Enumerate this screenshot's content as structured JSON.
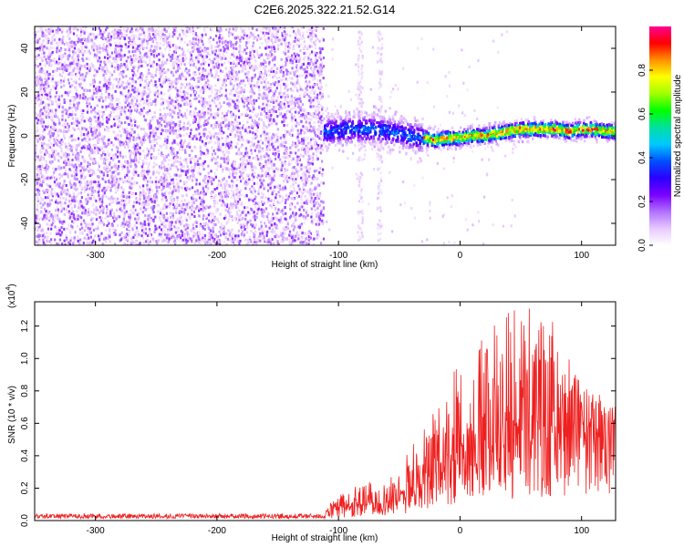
{
  "figure": {
    "title": "C2E6.2025.322.21.52.G14"
  },
  "chart_data": [
    {
      "type": "heatmap",
      "xlabel": "Height of straight line (km)",
      "ylabel": "Frequency (Hz)",
      "xlim": [
        -350,
        128
      ],
      "ylim": [
        -50,
        50
      ],
      "xticks": [
        -300,
        -200,
        -100,
        0,
        100
      ],
      "yticks": [
        -40,
        -20,
        0,
        20,
        40
      ],
      "colorbar": {
        "label": "Normalized spectral amplitude",
        "range": [
          0.0,
          1.0
        ],
        "ticks": [
          0.0,
          0.2,
          0.4,
          0.6,
          0.8
        ],
        "colormap": [
          "#ffffff",
          "#e8c8ff",
          "#b070ff",
          "#7a00ff",
          "#2a00ff",
          "#0050ff",
          "#00c8ff",
          "#00e0a0",
          "#00ff00",
          "#a0ff00",
          "#ffff00",
          "#ff9000",
          "#ff0000",
          "#ff0090"
        ]
      },
      "regions": [
        {
          "name": "noise",
          "x_range": [
            -350,
            -112
          ],
          "freq_range": [
            -50,
            50
          ],
          "typical_amplitude": 0.05
        },
        {
          "name": "signal-onset",
          "x_range": [
            -112,
            -30
          ],
          "center_freq": 2,
          "spread_hz": 8,
          "typical_amplitude": 0.3
        },
        {
          "name": "signal",
          "x_range": [
            -30,
            128
          ],
          "center_freq": 1.5,
          "spread_hz": 4,
          "typical_amplitude": 0.7
        }
      ],
      "ridge": {
        "x": [
          -110,
          -90,
          -70,
          -50,
          -30,
          -20,
          -10,
          0,
          10,
          20,
          30,
          40,
          50,
          60,
          70,
          80,
          90,
          100,
          110,
          120,
          128
        ],
        "freq": [
          2,
          3,
          3,
          1,
          -1,
          -2,
          -1,
          -1,
          0,
          0,
          1,
          2,
          3,
          3,
          3,
          3,
          2,
          3,
          3,
          2,
          2
        ]
      }
    },
    {
      "type": "line",
      "xlabel": "Height of straight line (km)",
      "ylabel": "SNR (10 * v/v)",
      "y_multiplier_label": "(x10",
      "y_multiplier_exponent": "4",
      "y_multiplier_close": ")",
      "xlim": [
        -350,
        128
      ],
      "ylim": [
        0,
        1.35
      ],
      "xticks": [
        -300,
        -200,
        -100,
        0,
        100
      ],
      "yticks": [
        0.0,
        0.2,
        0.4,
        0.6,
        0.8,
        1.0,
        1.2
      ],
      "color": "#ee2020",
      "envelope": {
        "x": [
          -350,
          -300,
          -250,
          -200,
          -150,
          -120,
          -110,
          -100,
          -90,
          -80,
          -70,
          -60,
          -50,
          -40,
          -30,
          -20,
          -10,
          0,
          10,
          20,
          30,
          40,
          50,
          60,
          70,
          80,
          90,
          100,
          110,
          120,
          128
        ],
        "max": [
          0.04,
          0.04,
          0.04,
          0.05,
          0.04,
          0.04,
          0.08,
          0.16,
          0.22,
          0.27,
          0.22,
          0.25,
          0.35,
          0.48,
          0.6,
          0.7,
          0.8,
          1.05,
          1.1,
          1.2,
          1.3,
          1.3,
          1.35,
          1.3,
          1.3,
          1.2,
          1.0,
          0.85,
          0.8,
          0.75,
          0.75
        ],
        "base": [
          0.02,
          0.02,
          0.02,
          0.02,
          0.02,
          0.02,
          0.04,
          0.06,
          0.07,
          0.08,
          0.08,
          0.09,
          0.12,
          0.16,
          0.2,
          0.25,
          0.3,
          0.35,
          0.38,
          0.4,
          0.42,
          0.45,
          0.45,
          0.45,
          0.48,
          0.5,
          0.5,
          0.5,
          0.5,
          0.52,
          0.55
        ]
      }
    }
  ]
}
